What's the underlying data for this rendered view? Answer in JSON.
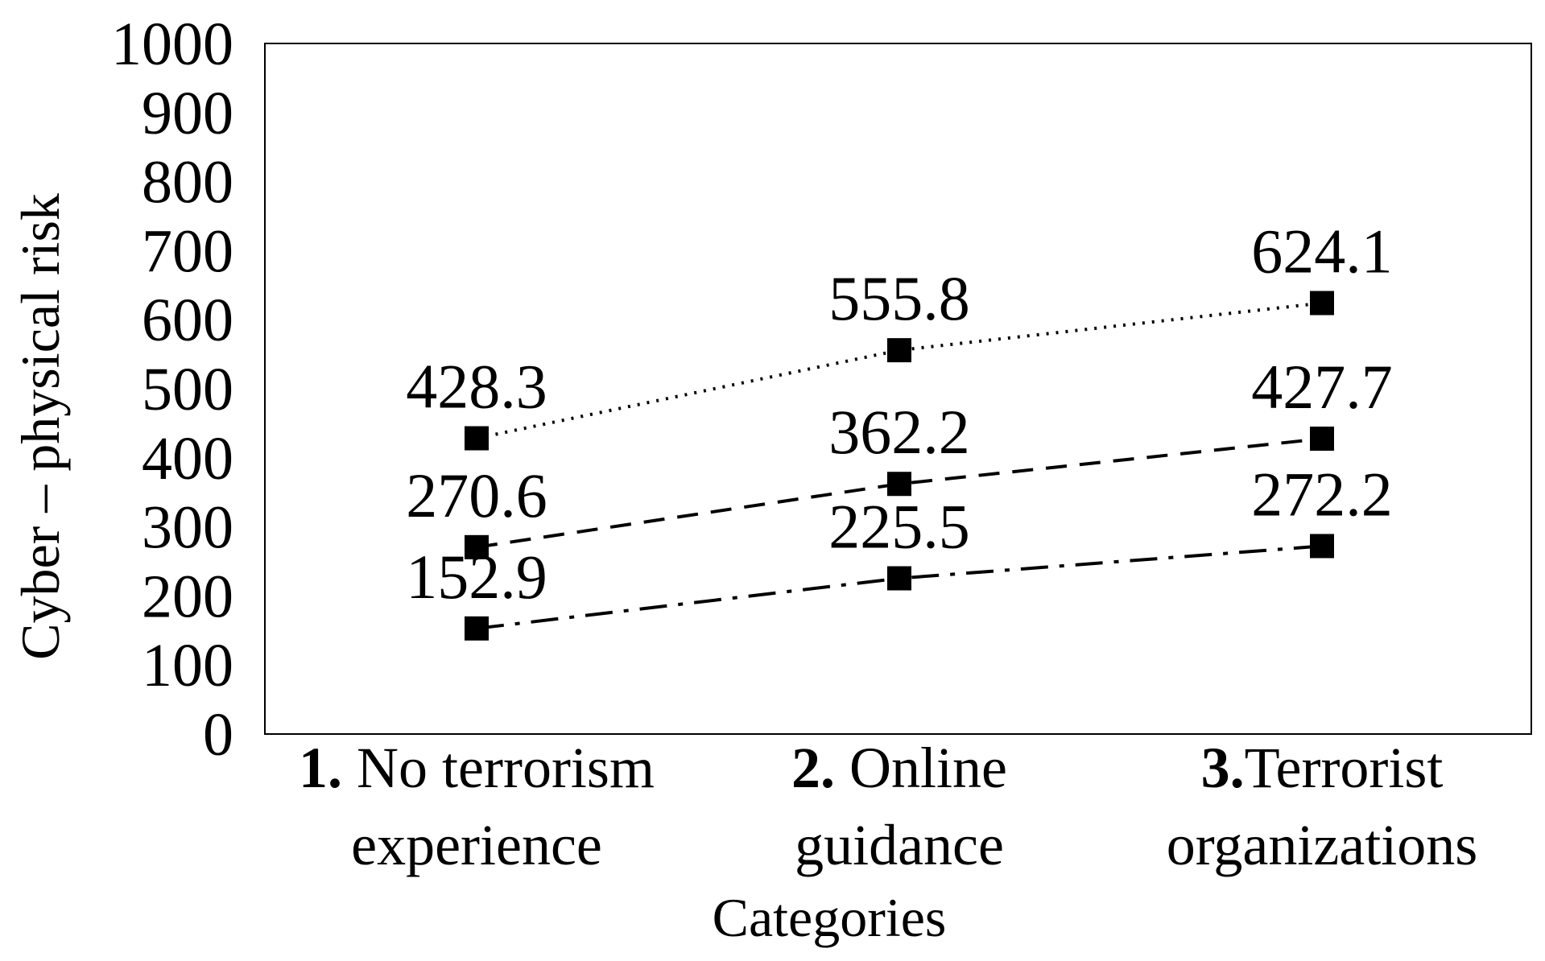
{
  "chart_data": {
    "type": "line",
    "title": "",
    "xlabel": "Categories",
    "ylabel": "Cyber – physical risk",
    "ylim": [
      0,
      1000
    ],
    "yticks": [
      0,
      100,
      200,
      300,
      400,
      500,
      600,
      700,
      800,
      900,
      1000
    ],
    "ytick_labels": [
      "0",
      "100",
      "200",
      "300",
      "400",
      "500",
      "600",
      "700",
      "800",
      "900",
      "1000"
    ],
    "grid": false,
    "legend": "none",
    "marker": "square",
    "categories": [
      {
        "number": "1.",
        "lines": [
          "No terrorism",
          "experience"
        ]
      },
      {
        "number": "2.",
        "lines": [
          "Online",
          "guidance"
        ]
      },
      {
        "number": "3.",
        "lines": [
          "Terrorist",
          "organizations"
        ]
      }
    ],
    "series": [
      {
        "line_style": "dotted",
        "values": [
          428.3,
          555.8,
          624.1
        ],
        "labels": [
          "428.3",
          "555.8",
          "624.1"
        ]
      },
      {
        "line_style": "dashed",
        "values": [
          270.6,
          362.2,
          427.7
        ],
        "labels": [
          "270.6",
          "362.2",
          "427.7"
        ]
      },
      {
        "line_style": "dash-dot",
        "values": [
          152.9,
          225.5,
          272.2
        ],
        "labels": [
          "152.9",
          "225.5",
          "272.2"
        ]
      }
    ],
    "colors": {
      "line": "#000000",
      "marker": "#000000",
      "frame": "#000000",
      "background": "#ffffff"
    }
  }
}
